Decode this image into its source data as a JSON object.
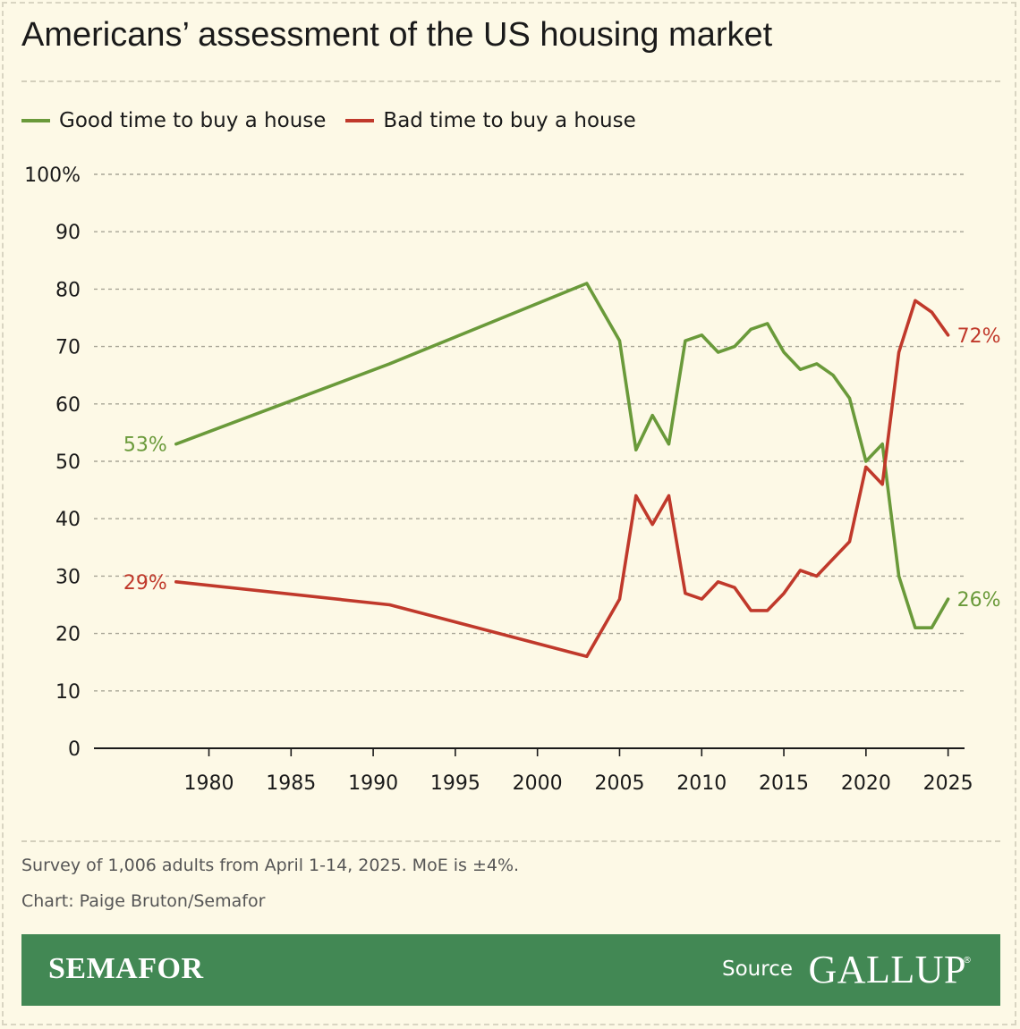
{
  "title": "Americans’ assessment of the US housing market",
  "legend": {
    "good_label": "Good time to buy a house",
    "bad_label": "Bad time to buy a house"
  },
  "colors": {
    "good": "#6a9a3a",
    "bad": "#c0392b",
    "grid": "#a8a596",
    "axis": "#1a1a1a",
    "footer": "#428854"
  },
  "chart_data": {
    "type": "line",
    "title": "Americans’ assessment of the US housing market",
    "xlabel": "",
    "ylabel": "",
    "xlim": [
      1973,
      2026
    ],
    "ylim": [
      0,
      100
    ],
    "y_ticks": [
      0,
      10,
      20,
      30,
      40,
      50,
      60,
      70,
      80,
      90,
      100
    ],
    "y_tick_labels": [
      "0",
      "10",
      "20",
      "30",
      "40",
      "50",
      "60",
      "70",
      "80",
      "90",
      "100%"
    ],
    "x_ticks": [
      1980,
      1985,
      1990,
      1995,
      2000,
      2005,
      2010,
      2015,
      2020,
      2025
    ],
    "x_tick_labels": [
      "1980",
      "1985",
      "1990",
      "1995",
      "2000",
      "2005",
      "2010",
      "2015",
      "2020",
      "2025"
    ],
    "grid": true,
    "legend_position": "top-left",
    "series": [
      {
        "name": "Good time to buy a house",
        "color": "#6a9a3a",
        "x": [
          1978,
          1991,
          2003,
          2005,
          2006,
          2007,
          2008,
          2009,
          2010,
          2011,
          2012,
          2013,
          2014,
          2015,
          2016,
          2017,
          2018,
          2019,
          2020,
          2021,
          2022,
          2023,
          2024,
          2025
        ],
        "values": [
          53,
          67,
          81,
          71,
          52,
          58,
          53,
          71,
          72,
          69,
          70,
          73,
          74,
          69,
          66,
          67,
          65,
          61,
          50,
          53,
          30,
          21,
          21,
          26
        ],
        "start_label": "53%",
        "end_label": "26%"
      },
      {
        "name": "Bad time to buy a house",
        "color": "#c0392b",
        "x": [
          1978,
          1991,
          2003,
          2005,
          2006,
          2007,
          2008,
          2009,
          2010,
          2011,
          2012,
          2013,
          2014,
          2015,
          2016,
          2017,
          2018,
          2019,
          2020,
          2021,
          2022,
          2023,
          2024,
          2025
        ],
        "values": [
          29,
          25,
          16,
          26,
          44,
          39,
          44,
          27,
          26,
          29,
          28,
          24,
          24,
          27,
          31,
          30,
          33,
          36,
          49,
          46,
          69,
          78,
          76,
          72
        ],
        "start_label": "29%",
        "end_label": "72%"
      }
    ]
  },
  "footnotes": {
    "survey": "Survey of 1,006 adults from April 1-14, 2025. MoE is ±4%.",
    "credit": "Chart: Paige Bruton/Semafor"
  },
  "footer": {
    "brand": "SEMAFOR",
    "source_label": "Source",
    "source_name": "GALLUP",
    "registered_mark": "®"
  }
}
